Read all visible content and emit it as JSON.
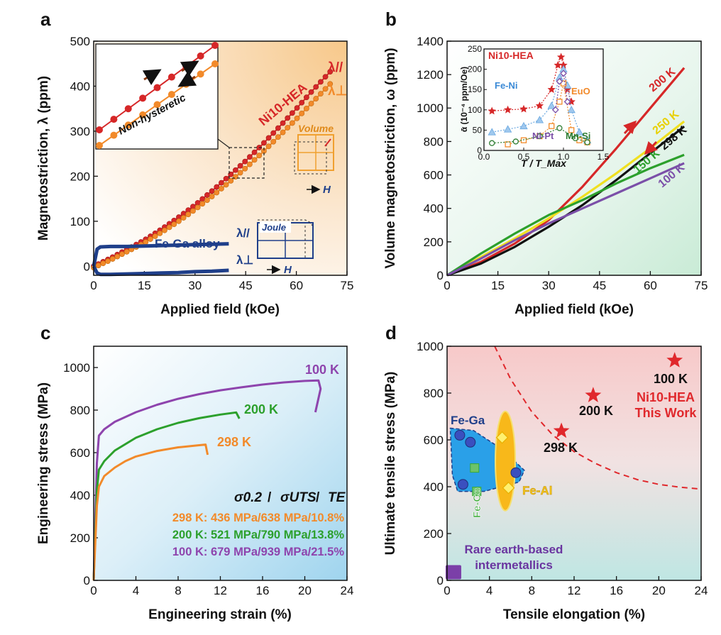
{
  "figure": {
    "panels": [
      {
        "letter": "a"
      },
      {
        "letter": "b"
      },
      {
        "letter": "c"
      },
      {
        "letter": "d"
      }
    ]
  },
  "chart_data": [
    {
      "type": "line",
      "panel": "a",
      "xlabel": "Applied field (kOe)",
      "ylabel": "Magnetostriction, λ (ppm)",
      "xlim": [
        0,
        75
      ],
      "ylim": [
        -20,
        500
      ],
      "xticks": [
        0,
        15,
        30,
        45,
        60,
        75
      ],
      "yticks": [
        0,
        100,
        200,
        300,
        400,
        500
      ],
      "series": [
        {
          "name": "Ni10-HEA λ//",
          "color": "#d62728",
          "x": [
            0,
            5,
            10,
            15,
            20,
            25,
            30,
            35,
            40,
            45,
            50,
            55,
            60,
            65,
            70
          ],
          "y": [
            0,
            18,
            38,
            58,
            82,
            108,
            136,
            167,
            200,
            234,
            271,
            310,
            350,
            392,
            432
          ]
        },
        {
          "name": "Ni10-HEA λ⊥",
          "color": "#f28a2a",
          "x": [
            0,
            5,
            10,
            15,
            20,
            25,
            30,
            35,
            40,
            45,
            50,
            55,
            60,
            65,
            70
          ],
          "y": [
            -3,
            14,
            33,
            52,
            75,
            99,
            126,
            155,
            186,
            218,
            253,
            290,
            327,
            366,
            405
          ]
        },
        {
          "name": "Fe-Ga alloy λ//",
          "color": "#1f3f8a",
          "x": [
            0,
            1,
            2,
            5,
            10,
            15,
            20,
            25,
            30,
            35,
            40
          ],
          "y": [
            0,
            38,
            43,
            44,
            44,
            45,
            46,
            47,
            48,
            49,
            50
          ]
        },
        {
          "name": "Fe-Ga alloy λ⊥",
          "color": "#1f3f8a",
          "x": [
            0,
            1,
            2,
            5,
            10,
            15,
            20,
            25,
            30,
            35,
            40
          ],
          "y": [
            0,
            -15,
            -18,
            -18,
            -17,
            -16,
            -15,
            -14,
            -12,
            -11,
            -9
          ]
        }
      ],
      "labels": {
        "hea": "Ni10-HEA",
        "lam_par": "λ//",
        "lam_perp": "λ⊥",
        "fega": "Fe-Ga alloy",
        "fega_par": "λ//",
        "fega_perp": "λ⊥",
        "inset_label": "Non-hysteretic",
        "volume": "Volume",
        "joule": "Joule",
        "h_vol": "H",
        "h_joule": "H"
      }
    },
    {
      "type": "line",
      "panel": "b",
      "xlabel": "Applied field (kOe)",
      "ylabel": "Volume magnetostriction, ω (ppm)",
      "xlim": [
        0,
        75
      ],
      "ylim": [
        0,
        1400
      ],
      "xticks": [
        0,
        15,
        30,
        45,
        60,
        75
      ],
      "yticks": [
        0,
        200,
        400,
        600,
        800,
        1000,
        1200,
        1400
      ],
      "series": [
        {
          "name": "200 K",
          "color": "#d62728",
          "x": [
            0,
            10,
            20,
            30,
            40,
            50,
            60,
            70
          ],
          "y": [
            0,
            80,
            190,
            330,
            530,
            760,
            1000,
            1240
          ]
        },
        {
          "name": "250 K",
          "color": "#f0e020",
          "x": [
            0,
            10,
            20,
            30,
            40,
            50,
            60,
            70
          ],
          "y": [
            0,
            110,
            220,
            340,
            470,
            610,
            760,
            920
          ]
        },
        {
          "name": "298 K",
          "color": "#111111",
          "x": [
            0,
            10,
            20,
            30,
            40,
            50,
            60,
            70
          ],
          "y": [
            0,
            70,
            170,
            290,
            420,
            570,
            730,
            890
          ]
        },
        {
          "name": "150 K",
          "color": "#2ca02c",
          "x": [
            0,
            10,
            20,
            30,
            40,
            50,
            60,
            70
          ],
          "y": [
            0,
            130,
            250,
            360,
            450,
            550,
            640,
            720
          ]
        },
        {
          "name": "100 K",
          "color": "#7b4fa8",
          "x": [
            0,
            10,
            20,
            30,
            40,
            50,
            60,
            70
          ],
          "y": [
            0,
            100,
            210,
            310,
            400,
            490,
            580,
            670
          ]
        }
      ],
      "inset": {
        "title": "Ni10-HEA",
        "xlabel": "T / T_Max",
        "ylabel": "ᾱ (10⁻⁴ ppm/Oe)",
        "xlim": [
          0,
          1.5
        ],
        "ylim": [
          0,
          250
        ],
        "xticks": [
          0.0,
          0.5,
          1.0,
          1.5
        ],
        "yticks": [
          0,
          50,
          100,
          150,
          200,
          250
        ],
        "labels": {
          "feni": "Fe-Ni",
          "euo": "EuO",
          "nipt": "Ni-Pt",
          "mnsi": "Mn-Si"
        },
        "series": [
          {
            "name": "Ni10-HEA",
            "color": "#d62728",
            "x": [
              0.1,
              0.3,
              0.5,
              0.7,
              0.85,
              0.93,
              0.97,
              1.0,
              1.05,
              1.1
            ],
            "y": [
              97,
              100,
              102,
              110,
              150,
              210,
              230,
              210,
              150,
              120
            ]
          },
          {
            "name": "Fe-Ni",
            "color": "#6aa8e0",
            "x": [
              0.1,
              0.3,
              0.5,
              0.7,
              0.85,
              0.95,
              1.0,
              1.05,
              1.1,
              1.2,
              1.3
            ],
            "y": [
              45,
              52,
              60,
              75,
              110,
              180,
              200,
              160,
              100,
              45,
              25
            ]
          },
          {
            "name": "EuO",
            "color": "#f28a2a",
            "x": [
              0.3,
              0.5,
              0.7,
              0.85,
              0.95,
              1.0,
              1.1,
              1.2,
              1.3
            ],
            "y": [
              15,
              25,
              35,
              60,
              120,
              165,
              50,
              25,
              20
            ]
          },
          {
            "name": "Ni-Pt",
            "color": "#7b4fa8",
            "x": [
              0.9,
              0.95,
              1.0,
              1.05
            ],
            "y": [
              100,
              170,
              190,
              120
            ]
          },
          {
            "name": "Mn-Si",
            "color": "#2e7d32",
            "x": [
              0.1,
              0.4,
              0.7,
              0.95,
              1.15,
              1.3
            ],
            "y": [
              18,
              22,
              35,
              55,
              30,
              20
            ]
          }
        ]
      }
    },
    {
      "type": "line",
      "panel": "c",
      "xlabel": "Engineering strain (%)",
      "ylabel": "Engineering stress (MPa)",
      "xlim": [
        0,
        24
      ],
      "ylim": [
        0,
        1100
      ],
      "xticks": [
        0,
        4,
        8,
        12,
        16,
        20,
        24
      ],
      "yticks": [
        0,
        200,
        400,
        600,
        800,
        1000
      ],
      "series": [
        {
          "name": "100 K",
          "color": "#8e44ad",
          "x": [
            0,
            0.3,
            0.5,
            1,
            2,
            4,
            6,
            8,
            10,
            12,
            14,
            16,
            18,
            20,
            21.3,
            21.5,
            21.0
          ],
          "y": [
            0,
            550,
            680,
            710,
            745,
            790,
            825,
            853,
            875,
            893,
            907,
            920,
            930,
            937,
            939,
            900,
            790
          ]
        },
        {
          "name": "200 K",
          "color": "#2ca02c",
          "x": [
            0,
            0.3,
            0.5,
            1,
            2,
            4,
            6,
            8,
            10,
            12,
            13.5,
            13.8
          ],
          "y": [
            0,
            420,
            520,
            560,
            610,
            670,
            710,
            740,
            762,
            779,
            789,
            760
          ]
        },
        {
          "name": "298 K",
          "color": "#f28a2a",
          "x": [
            0,
            0.3,
            0.5,
            1,
            2,
            3,
            4,
            6,
            8,
            10,
            10.6,
            10.8
          ],
          "y": [
            0,
            350,
            440,
            490,
            530,
            560,
            582,
            608,
            625,
            635,
            638,
            590
          ]
        }
      ],
      "labels": {
        "l100": "100 K",
        "l200": "200 K",
        "l298": "298 K"
      },
      "table": {
        "header": [
          "σ0.2",
          "/",
          "σUTS",
          "/",
          "TE"
        ],
        "rows": [
          {
            "text": "298 K: 436 MPa/638 MPa/10.8%",
            "color": "#f28a2a"
          },
          {
            "text": "200 K: 521 MPa/790 MPa/13.8%",
            "color": "#2ca02c"
          },
          {
            "text": "100 K: 679 MPa/939 MPa/21.5%",
            "color": "#8e44ad"
          }
        ]
      }
    },
    {
      "type": "scatter",
      "panel": "d",
      "xlabel": "Tensile elongation (%)",
      "ylabel": "Ultimate tensile stress (MPa)",
      "xlim": [
        0,
        24
      ],
      "ylim": [
        0,
        1000
      ],
      "xticks": [
        0,
        4,
        8,
        12,
        16,
        20,
        24
      ],
      "yticks": [
        0,
        200,
        400,
        600,
        800,
        1000
      ],
      "hea_points": [
        {
          "label": "100 K",
          "x": 21.5,
          "y": 939
        },
        {
          "label": "200 K",
          "x": 13.8,
          "y": 790
        },
        {
          "label": "298 K",
          "x": 10.8,
          "y": 638
        }
      ],
      "groups": {
        "hea": {
          "label": "Ni10-HEA",
          "sub": "This Work",
          "color": "#e0282c"
        },
        "fega": {
          "label": "Fe-Ga",
          "color": "#1f3f8a",
          "points": [
            {
              "x": 1.2,
              "y": 620
            },
            {
              "x": 2.2,
              "y": 590
            },
            {
              "x": 1.5,
              "y": 410
            },
            {
              "x": 6.5,
              "y": 460
            }
          ]
        },
        "feco": {
          "label": "Fe-Co",
          "color": "#3aaa35",
          "points": [
            {
              "x": 2.6,
              "y": 480
            },
            {
              "x": 2.8,
              "y": 380
            }
          ]
        },
        "feal": {
          "label": "Fe-Al",
          "color": "#f5c518",
          "points": [
            {
              "x": 5.2,
              "y": 610
            },
            {
              "x": 5.8,
              "y": 395
            }
          ]
        },
        "rare": {
          "label": "Rare earth-based",
          "label2": "intermetallics",
          "color": "#7b3fa8",
          "points": [
            {
              "x": 0.6,
              "y": 35
            }
          ]
        }
      },
      "boundary": {
        "x": [
          4.5,
          6,
          8,
          10,
          12,
          14,
          16,
          18,
          20,
          22,
          24
        ],
        "y": [
          1000,
          860,
          720,
          620,
          550,
          500,
          460,
          430,
          410,
          398,
          390
        ]
      }
    }
  ]
}
